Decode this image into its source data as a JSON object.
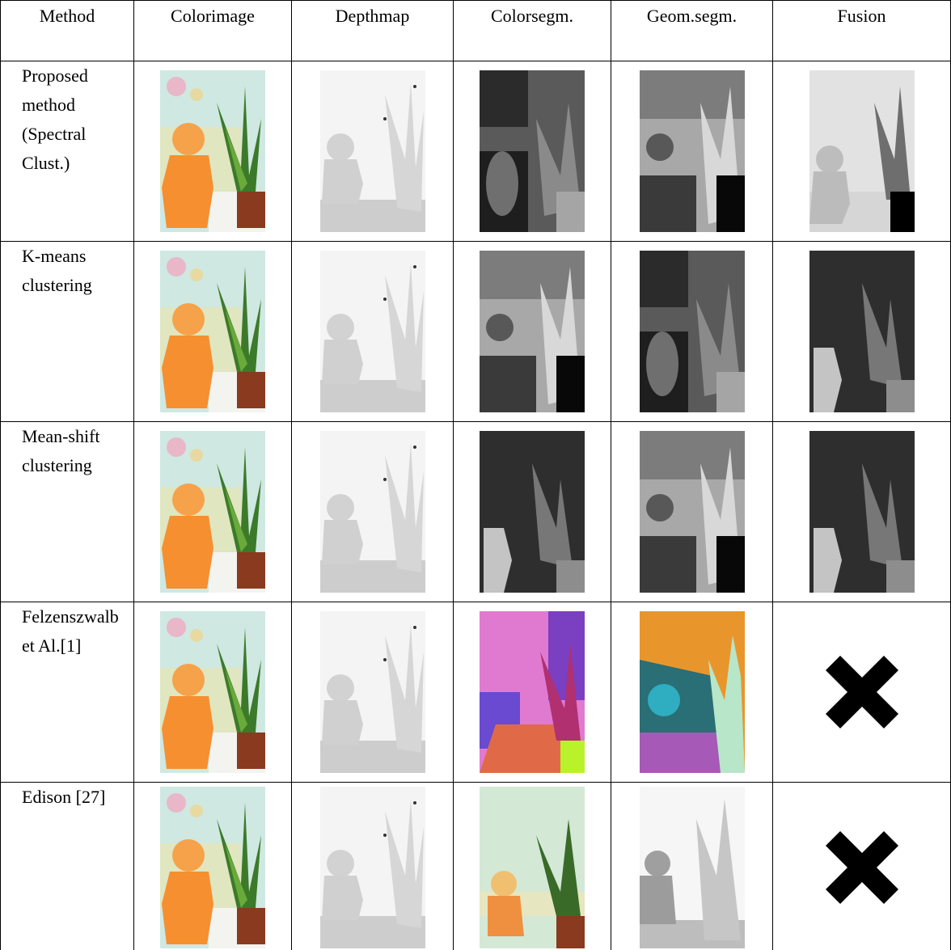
{
  "header": [
    [
      "Method"
    ],
    [
      "Color",
      "image"
    ],
    [
      "Depth",
      "map"
    ],
    [
      "Color",
      "segm."
    ],
    [
      "Geom.",
      "segm."
    ],
    [
      "Fusion"
    ]
  ],
  "rows": [
    {
      "method": [
        "Proposed",
        "method",
        "(Spectral",
        "Clust.)"
      ]
    },
    {
      "method": [
        "K-means",
        "clustering"
      ]
    },
    {
      "method": [
        "Mean-shift",
        "clustering"
      ]
    },
    {
      "method": [
        "Felzenszwalb",
        "et Al.[1]"
      ]
    },
    {
      "method": [
        "Edison [27]"
      ]
    }
  ]
}
